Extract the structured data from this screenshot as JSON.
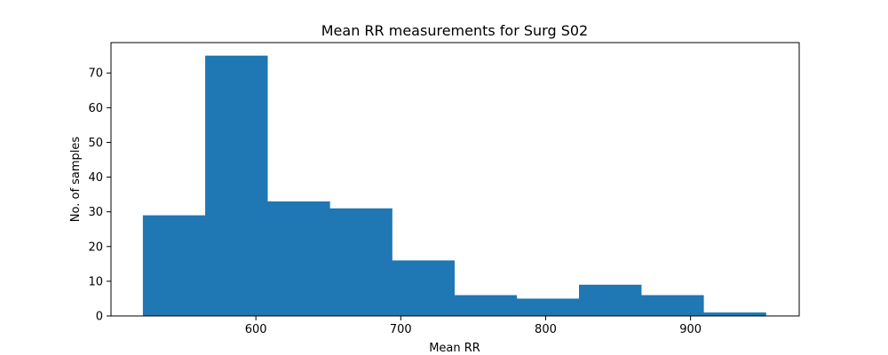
{
  "chart_data": {
    "type": "bar",
    "title": "Mean RR measurements for Surg S02",
    "xlabel": "Mean RR",
    "ylabel": "No. of samples",
    "bin_edges": [
      522,
      565,
      608,
      651,
      694,
      737,
      780,
      823,
      866,
      909,
      952
    ],
    "values": [
      29,
      75,
      33,
      31,
      16,
      6,
      5,
      9,
      6,
      1
    ],
    "xlim": [
      500,
      975
    ],
    "ylim": [
      0,
      78.75
    ],
    "xticks": [
      600,
      700,
      800,
      900
    ],
    "yticks": [
      0,
      10,
      20,
      30,
      40,
      50,
      60,
      70
    ],
    "bar_color": "#1f77b4",
    "grid": false,
    "legend": "none"
  }
}
